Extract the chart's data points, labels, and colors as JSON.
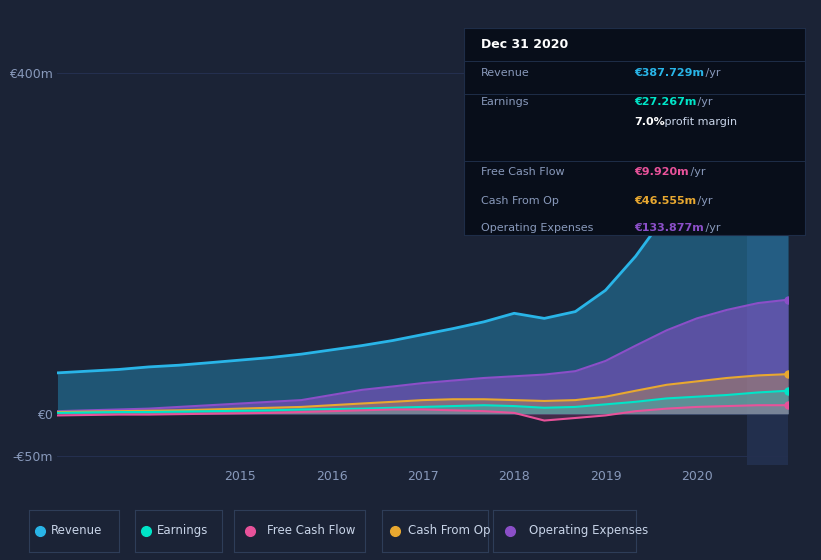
{
  "background_color": "#1b2336",
  "plot_bg_color": "#1b2336",
  "tooltip_title": "Dec 31 2020",
  "x_years": [
    2013.0,
    2013.33,
    2013.67,
    2014.0,
    2014.33,
    2014.67,
    2015.0,
    2015.33,
    2015.67,
    2016.0,
    2016.33,
    2016.67,
    2017.0,
    2017.33,
    2017.67,
    2018.0,
    2018.33,
    2018.67,
    2019.0,
    2019.33,
    2019.67,
    2020.0,
    2020.33,
    2020.67,
    2021.0
  ],
  "revenue": [
    48,
    50,
    52,
    55,
    57,
    60,
    63,
    66,
    70,
    75,
    80,
    86,
    93,
    100,
    108,
    118,
    112,
    120,
    145,
    185,
    235,
    280,
    330,
    375,
    388
  ],
  "earnings": [
    1,
    1.5,
    2,
    2,
    2.5,
    3,
    3.5,
    4,
    5,
    5.5,
    6,
    7,
    8,
    9,
    10,
    9,
    7,
    8,
    11,
    14,
    18,
    20,
    22,
    25,
    27
  ],
  "free_cash_flow": [
    -2,
    -1.5,
    -1,
    -1,
    -0.5,
    0,
    0.5,
    1,
    2,
    3,
    4,
    5,
    5,
    4,
    3,
    1,
    -8,
    -5,
    -2,
    3,
    6,
    8,
    9,
    10,
    10
  ],
  "cash_from_op": [
    2,
    2.5,
    3,
    3.5,
    4,
    5,
    6,
    7,
    8,
    10,
    12,
    14,
    16,
    17,
    17,
    16,
    15,
    16,
    20,
    27,
    34,
    38,
    42,
    45,
    46.5
  ],
  "operating_expenses": [
    3,
    4,
    5,
    6,
    8,
    10,
    12,
    14,
    16,
    22,
    28,
    32,
    36,
    39,
    42,
    44,
    46,
    50,
    62,
    80,
    98,
    112,
    122,
    130,
    134
  ],
  "revenue_color": "#29b5e8",
  "earnings_color": "#00e5c8",
  "free_cash_flow_color": "#e8529a",
  "cash_from_op_color": "#e8a830",
  "operating_expenses_color": "#8b4fc8",
  "ylim_min": -60,
  "ylim_max": 440,
  "ytick_vals": [
    -50,
    0,
    400
  ],
  "ytick_labels": [
    "-€50m",
    "€0",
    "€400m"
  ],
  "xtick_positions": [
    2015,
    2016,
    2017,
    2018,
    2019,
    2020
  ],
  "grid_color": "#253050",
  "legend_items": [
    "Revenue",
    "Earnings",
    "Free Cash Flow",
    "Cash From Op",
    "Operating Expenses"
  ],
  "legend_colors": [
    "#29b5e8",
    "#00e5c8",
    "#e8529a",
    "#e8a830",
    "#8b4fc8"
  ],
  "tooltip_bg": "#080e1a",
  "tooltip_rows": [
    {
      "label": "Revenue",
      "value": "€387.729m",
      "suffix": " /yr",
      "color": "#29b5e8"
    },
    {
      "label": "Earnings",
      "value": "€27.267m",
      "suffix": " /yr",
      "color": "#00e5c8"
    },
    {
      "label": "",
      "value": "7.0%",
      "suffix": " profit margin",
      "color": "#ffffff"
    },
    {
      "label": "Free Cash Flow",
      "value": "€9.920m",
      "suffix": " /yr",
      "color": "#e8529a"
    },
    {
      "label": "Cash From Op",
      "value": "€46.555m",
      "suffix": " /yr",
      "color": "#e8a830"
    },
    {
      "label": "Operating Expenses",
      "value": "€133.877m",
      "suffix": " /yr",
      "color": "#8b4fc8"
    }
  ]
}
